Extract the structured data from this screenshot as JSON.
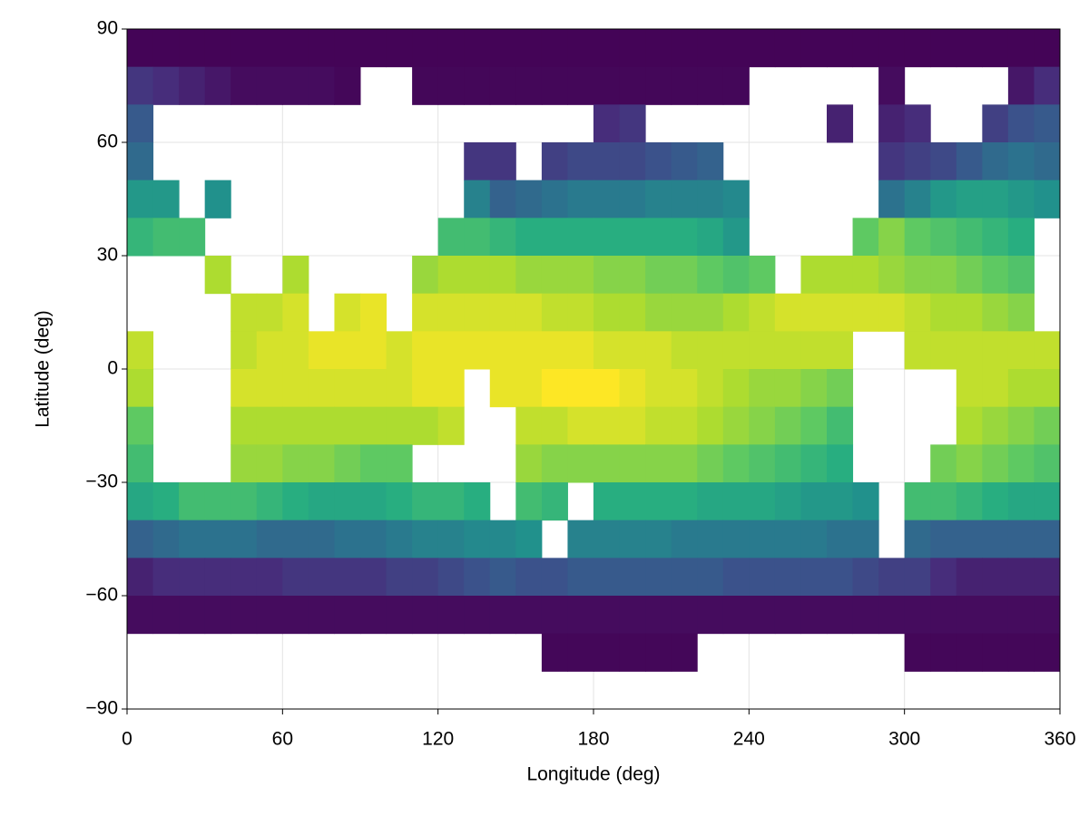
{
  "chart_data": {
    "type": "heatmap",
    "colormap": "viridis",
    "clim": [
      -2,
      30
    ],
    "xlabel": "Longitude (deg)",
    "ylabel": "Latitude (deg)",
    "xlim": [
      0,
      360
    ],
    "ylim": [
      -90,
      90
    ],
    "xticks": [
      0,
      60,
      120,
      180,
      240,
      300,
      360
    ],
    "yticks": [
      {
        "value": -90,
        "label": "−90"
      },
      {
        "value": -60,
        "label": "−60"
      },
      {
        "value": -30,
        "label": "−30"
      },
      0,
      30,
      60,
      90
    ],
    "grid": true,
    "x": [
      5,
      15,
      25,
      35,
      45,
      55,
      65,
      75,
      85,
      95,
      105,
      115,
      125,
      135,
      145,
      155,
      165,
      175,
      185,
      195,
      205,
      215,
      225,
      235,
      245,
      255,
      265,
      275,
      285,
      295,
      305,
      315,
      325,
      335,
      345,
      355
    ],
    "y": [
      85,
      75,
      65,
      55,
      45,
      35,
      25,
      15,
      5,
      -5,
      -15,
      -25,
      -35,
      -45,
      -55,
      -65,
      -75,
      -85
    ],
    "values": [
      [
        -1.7,
        -1.7,
        -1.7,
        -1.7,
        -1.7,
        -1.7,
        -1.7,
        -1.7,
        -1.7,
        -1.7,
        -1.7,
        -1.7,
        -1.7,
        -1.7,
        -1.7,
        -1.7,
        -1.7,
        -1.7,
        -1.7,
        -1.7,
        -1.7,
        -1.7,
        -1.7,
        -1.7,
        -1.7,
        -1.7,
        -1.7,
        -1.7,
        -1.7,
        -1.7,
        -1.7,
        -1.7,
        -1.7,
        -1.7,
        -1.7,
        -1.7
      ],
      [
        3,
        2,
        1,
        0,
        -1,
        -1,
        -1,
        -1,
        -1.5,
        null,
        null,
        -1.5,
        -1.5,
        -1.5,
        -1.5,
        -1.5,
        -1.5,
        -1.5,
        -1.5,
        -1.5,
        -1.5,
        -1.5,
        -1.5,
        -1.5,
        null,
        null,
        null,
        null,
        null,
        -1,
        null,
        null,
        null,
        null,
        0,
        2
      ],
      [
        7,
        null,
        null,
        null,
        null,
        null,
        null,
        null,
        null,
        null,
        null,
        null,
        null,
        null,
        null,
        null,
        null,
        null,
        2,
        3,
        null,
        null,
        null,
        null,
        null,
        null,
        null,
        1,
        null,
        1,
        2,
        null,
        null,
        4,
        6,
        7
      ],
      [
        9,
        null,
        null,
        null,
        null,
        null,
        null,
        null,
        null,
        null,
        null,
        null,
        null,
        3,
        3,
        null,
        4,
        5,
        5,
        5,
        6,
        7,
        8,
        null,
        null,
        null,
        null,
        null,
        null,
        3,
        4,
        5,
        7,
        9,
        10,
        9
      ],
      [
        15,
        15,
        null,
        14,
        null,
        null,
        null,
        null,
        null,
        null,
        null,
        null,
        null,
        12,
        8,
        9,
        10,
        11,
        11,
        11,
        12,
        12,
        12,
        13,
        null,
        null,
        null,
        null,
        null,
        10,
        12,
        15,
        16,
        16,
        15,
        14
      ],
      [
        19,
        20,
        20,
        null,
        null,
        null,
        null,
        null,
        null,
        null,
        null,
        null,
        20,
        20,
        19,
        18,
        18,
        18,
        18,
        18,
        18,
        18,
        17,
        15,
        null,
        null,
        null,
        null,
        22,
        24,
        22,
        21,
        20,
        19,
        18,
        null
      ],
      [
        null,
        null,
        null,
        26,
        null,
        null,
        26,
        null,
        null,
        null,
        null,
        25,
        26,
        26,
        26,
        25,
        25,
        25,
        24,
        24,
        23,
        23,
        22,
        21,
        22,
        null,
        26,
        26,
        26,
        25,
        24,
        24,
        23,
        22,
        21,
        null
      ],
      [
        null,
        null,
        null,
        null,
        27,
        27,
        28,
        null,
        28,
        29,
        null,
        28,
        28,
        28,
        28,
        28,
        27,
        27,
        26,
        26,
        25,
        25,
        25,
        26,
        27,
        28,
        28,
        28,
        28,
        28,
        27,
        26,
        26,
        25,
        24,
        null
      ],
      [
        27,
        null,
        null,
        null,
        27,
        28,
        28,
        29,
        29,
        29,
        28,
        29,
        29,
        29,
        29,
        29,
        29,
        29,
        28,
        28,
        28,
        27,
        27,
        27,
        27,
        27,
        27,
        27,
        null,
        null,
        27,
        27,
        27,
        27,
        27,
        27
      ],
      [
        26,
        null,
        null,
        null,
        28,
        28,
        28,
        28,
        28,
        28,
        28,
        29,
        29,
        null,
        29,
        29,
        30,
        30,
        30,
        29,
        28,
        28,
        27,
        26,
        25,
        25,
        24,
        23,
        null,
        null,
        null,
        null,
        27,
        27,
        26,
        26
      ],
      [
        22,
        null,
        null,
        null,
        26,
        26,
        26,
        26,
        26,
        26,
        26,
        26,
        27,
        null,
        null,
        27,
        27,
        28,
        28,
        28,
        27,
        27,
        26,
        25,
        24,
        23,
        22,
        20,
        null,
        null,
        null,
        null,
        26,
        25,
        24,
        23
      ],
      [
        20,
        null,
        null,
        null,
        25,
        25,
        24,
        24,
        23,
        22,
        22,
        null,
        null,
        null,
        null,
        25,
        24,
        24,
        24,
        24,
        24,
        24,
        23,
        22,
        21,
        20,
        19,
        18,
        null,
        null,
        null,
        23,
        24,
        23,
        22,
        21
      ],
      [
        17,
        18,
        20,
        20,
        20,
        19,
        18,
        17,
        17,
        17,
        18,
        19,
        19,
        18,
        null,
        20,
        19,
        null,
        18,
        18,
        18,
        18,
        17,
        17,
        17,
        16,
        15,
        15,
        14,
        null,
        20,
        20,
        19,
        18,
        17,
        17
      ],
      [
        8,
        9,
        10,
        10,
        10,
        9,
        9,
        9,
        10,
        10,
        11,
        12,
        12,
        13,
        13,
        14,
        null,
        12,
        12,
        12,
        12,
        11,
        11,
        11,
        11,
        11,
        11,
        10,
        10,
        null,
        9,
        8,
        8,
        8,
        8,
        8
      ],
      [
        1,
        2,
        2,
        2,
        2,
        2,
        3,
        3,
        3,
        3,
        4,
        4,
        5,
        6,
        7,
        6,
        6,
        7,
        7,
        7,
        7,
        7,
        7,
        6,
        6,
        6,
        6,
        6,
        5,
        4,
        4,
        2,
        1,
        1,
        1,
        1
      ],
      [
        -1,
        -1,
        -1,
        -1,
        -1,
        -1,
        -1,
        -1,
        -1,
        -1,
        -1,
        -1,
        -1,
        -1,
        -1,
        -1,
        -1,
        -1,
        -1,
        -1,
        -1,
        -1,
        -1,
        -1,
        -1,
        -1,
        -1,
        -1,
        -1,
        -1,
        -1,
        -1,
        -1,
        -1,
        -1,
        -1
      ],
      [
        null,
        null,
        null,
        null,
        null,
        null,
        null,
        null,
        null,
        null,
        null,
        null,
        null,
        null,
        null,
        null,
        -1.5,
        -1.5,
        -1.5,
        -1.5,
        -1.5,
        -1.5,
        null,
        null,
        null,
        null,
        null,
        null,
        null,
        null,
        -1.5,
        -1.5,
        -1.5,
        -1.5,
        -1.5,
        -1.5
      ],
      [
        null,
        null,
        null,
        null,
        null,
        null,
        null,
        null,
        null,
        null,
        null,
        null,
        null,
        null,
        null,
        null,
        null,
        null,
        null,
        null,
        null,
        null,
        null,
        null,
        null,
        null,
        null,
        null,
        null,
        null,
        null,
        null,
        null,
        null,
        null,
        null
      ]
    ]
  }
}
